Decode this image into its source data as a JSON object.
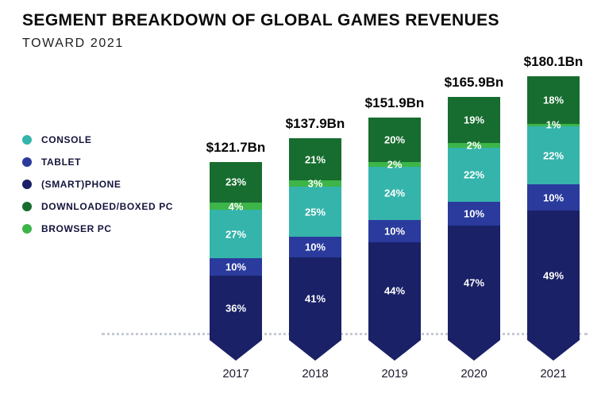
{
  "header": {
    "title": "SEGMENT BREAKDOWN OF GLOBAL GAMES REVENUES",
    "subtitle": "TOWARD 2021"
  },
  "legend": {
    "position": "left",
    "items": [
      {
        "label": "CONSOLE",
        "color": "#35b4ab"
      },
      {
        "label": "TABLET",
        "color": "#2a3b9d"
      },
      {
        "label": "(SMART)PHONE",
        "color": "#1a2166"
      },
      {
        "label": "DOWNLOADED/BOXED PC",
        "color": "#176d2f"
      },
      {
        "label": "BROWSER PC",
        "color": "#3db549"
      }
    ]
  },
  "chart_data": {
    "type": "bar",
    "stacked": true,
    "title": "SEGMENT BREAKDOWN OF GLOBAL GAMES REVENUES",
    "subtitle": "TOWARD 2021",
    "categories": [
      "2017",
      "2018",
      "2019",
      "2020",
      "2021"
    ],
    "totals_labels": [
      "$121.7Bn",
      "$137.9Bn",
      "$151.9Bn",
      "$165.9Bn",
      "$180.1Bn"
    ],
    "totals_bn": [
      121.7,
      137.9,
      151.9,
      165.9,
      180.1
    ],
    "unit": "% of total revenue",
    "series_top_to_bottom": [
      {
        "name": "DOWNLOADED/BOXED PC",
        "color": "#176d2f",
        "values_pct": [
          23,
          21,
          20,
          19,
          18
        ]
      },
      {
        "name": "BROWSER PC",
        "color": "#3db549",
        "values_pct": [
          4,
          3,
          2,
          2,
          1
        ]
      },
      {
        "name": "CONSOLE",
        "color": "#35b4ab",
        "values_pct": [
          27,
          25,
          24,
          22,
          22
        ]
      },
      {
        "name": "TABLET",
        "color": "#2a3b9d",
        "values_pct": [
          10,
          10,
          10,
          10,
          10
        ]
      },
      {
        "name": "(SMART)PHONE",
        "color": "#1a2166",
        "values_pct": [
          36,
          41,
          44,
          47,
          49
        ]
      }
    ],
    "baseline_style": "dotted",
    "bar_bottom_shape": "arrow-down"
  }
}
